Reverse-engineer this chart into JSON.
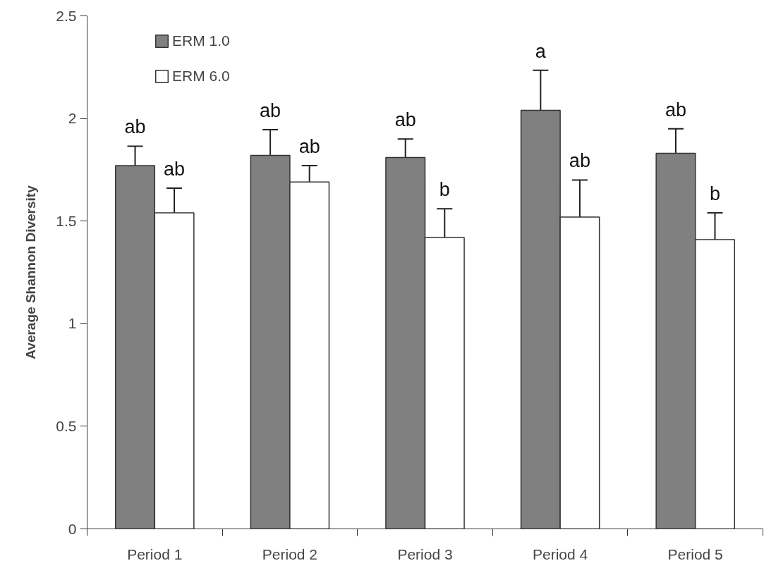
{
  "chart_data": {
    "type": "bar",
    "ylabel": "Average Shannon Diversity",
    "categories": [
      "Period 1",
      "Period 2",
      "Period 3",
      "Period 4",
      "Period 5"
    ],
    "series": [
      {
        "name": "ERM 1.0",
        "color": "#808080",
        "values": [
          1.77,
          1.82,
          1.81,
          2.04,
          1.83
        ],
        "errors": [
          0.095,
          0.125,
          0.09,
          0.195,
          0.12
        ]
      },
      {
        "name": "ERM 6.0",
        "color": "#ffffff",
        "values": [
          1.54,
          1.69,
          1.42,
          1.52,
          1.41
        ],
        "errors": [
          0.12,
          0.08,
          0.14,
          0.18,
          0.13
        ]
      }
    ],
    "ylim": [
      0,
      2.5
    ],
    "yticks": [
      0,
      0.5,
      1,
      1.5,
      2,
      2.5
    ],
    "grid": false,
    "legend": "top left",
    "annotations": [
      "ab",
      "ab",
      "ab",
      "ab",
      "ab",
      "b",
      "a",
      "ab",
      "ab",
      "b"
    ]
  }
}
